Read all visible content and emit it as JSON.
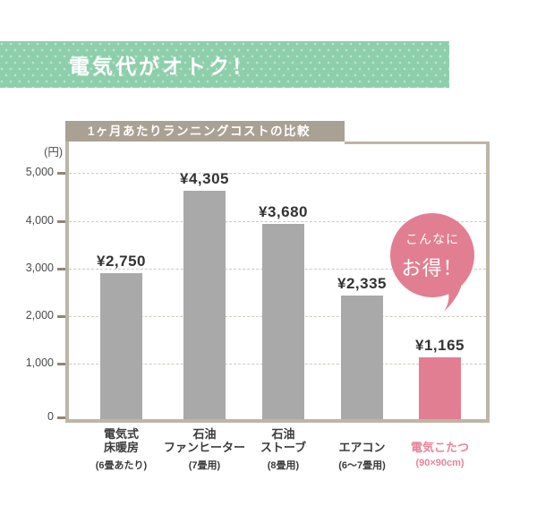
{
  "header": {
    "title": "電気代がオトク！"
  },
  "panel": {
    "title": "1ヶ月あたりランニングコストの比較"
  },
  "y_axis": {
    "unit_label": "(円)"
  },
  "bubble": {
    "line1": "こんなに",
    "line2": "お得！"
  },
  "colors": {
    "banner_green": "#8ecfab",
    "title_bar_taupe": "#a9a193",
    "border_taupe": "#bdb5a6",
    "bar_gray": "#a9a9a9",
    "accent_pink": "#e27e91",
    "pink_label": "#e8849a",
    "grid_line": "#cfc9bd",
    "text_dark": "#3b3b3b"
  },
  "chart_data": {
    "type": "bar",
    "title": "1ヶ月あたりランニングコストの比較",
    "unit": "円",
    "categories": [
      {
        "lines": [
          "電気式",
          "床暖房"
        ],
        "note": "(6畳あたり)",
        "highlight": false
      },
      {
        "lines": [
          "石油",
          "ファンヒーター"
        ],
        "note": "(7畳用)",
        "highlight": false
      },
      {
        "lines": [
          "石油",
          "ストーブ"
        ],
        "note": "(8畳用)",
        "highlight": false
      },
      {
        "lines": [
          "エアコン"
        ],
        "note": "(6〜7畳用)",
        "highlight": false
      },
      {
        "lines": [
          "電気こたつ"
        ],
        "note": "(90×90cm)",
        "highlight": true
      }
    ],
    "values": [
      2750,
      4305,
      3680,
      2335,
      1165
    ],
    "value_labels": [
      "¥2,750",
      "¥4,305",
      "¥3,680",
      "¥2,335",
      "¥1,165"
    ],
    "ylim": [
      0,
      5000
    ],
    "yticks": [
      5000,
      4000,
      3000,
      2000,
      1000,
      0
    ],
    "ytick_labels": [
      "5,000",
      "4,000",
      "3,000",
      "2,000",
      "1,000",
      "0"
    ],
    "grid": true,
    "legend": false,
    "annotation": "こんなにお得！"
  }
}
